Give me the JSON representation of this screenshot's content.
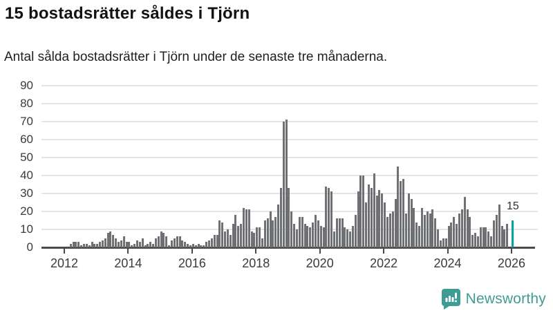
{
  "header": {
    "title": "15 bostadsrätter såldes i Tjörn",
    "subtitle": "Antal sålda bostadsrätter i Tjörn under de senaste tre månaderna."
  },
  "chart_data": {
    "type": "bar",
    "title": "15 bostadsrätter såldes i Tjörn",
    "subtitle": "Antal sålda bostadsrätter i Tjörn under de senaste tre månaderna.",
    "ylabel": "",
    "xlabel": "",
    "ylim": [
      0,
      90
    ],
    "grid": true,
    "y_ticks": [
      "0",
      "10",
      "20",
      "30",
      "40",
      "50",
      "60",
      "70",
      "80",
      "90"
    ],
    "x_ticks": [
      "2012",
      "2014",
      "2016",
      "2018",
      "2020",
      "2022",
      "2024",
      "2026"
    ],
    "frequency": "monthly",
    "start_month": "2012-03",
    "series": [
      {
        "name": "Antal sålda bostadsrätter",
        "values": [
          2,
          3,
          3,
          3,
          1,
          2,
          2,
          1,
          3,
          2,
          2,
          3,
          4,
          5,
          8,
          9,
          7,
          5,
          3,
          4,
          6,
          3,
          3,
          1,
          2,
          4,
          3,
          5,
          1,
          2,
          3,
          2,
          5,
          6,
          9,
          8,
          6,
          1,
          4,
          5,
          6,
          6,
          4,
          3,
          2,
          1,
          2,
          1,
          2,
          1,
          1,
          3,
          4,
          5,
          7,
          7,
          15,
          14,
          9,
          10,
          7,
          13,
          18,
          12,
          13,
          22,
          21,
          21,
          9,
          8,
          11,
          11,
          5,
          15,
          16,
          20,
          15,
          17,
          24,
          33,
          70,
          71,
          33,
          20,
          13,
          10,
          17,
          17,
          13,
          12,
          11,
          14,
          18,
          15,
          12,
          11,
          34,
          33,
          31,
          9,
          16,
          16,
          16,
          11,
          10,
          9,
          12,
          18,
          31,
          40,
          40,
          25,
          35,
          33,
          41,
          29,
          32,
          30,
          25,
          17,
          19,
          20,
          27,
          45,
          37,
          38,
          19,
          30,
          27,
          22,
          14,
          12,
          22,
          18,
          20,
          19,
          21,
          16,
          10,
          4,
          5,
          5,
          12,
          14,
          17,
          13,
          19,
          21,
          28,
          21,
          17,
          7,
          8,
          6,
          11,
          11,
          11,
          9,
          6,
          15,
          18,
          24,
          12,
          10,
          13,
          0,
          15
        ]
      }
    ],
    "highlight_last_bar": true,
    "last_value_label": "15",
    "bar_color": "#6e7073",
    "highlight_color": "#00a5a0",
    "grid_color": "#e4e4e4",
    "axis_color": "#4a4a4a",
    "tick_label_color": "#3a3a3a"
  },
  "annotation": {
    "last_value": "15"
  },
  "branding": {
    "logo_text": "Newsworthy",
    "logo_color": "#3f9c95"
  }
}
